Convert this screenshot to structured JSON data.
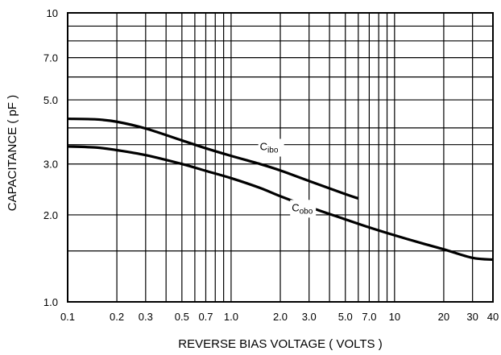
{
  "chart_data": {
    "type": "line",
    "title": "",
    "xlabel": "REVERSE BIAS VOLTAGE ( VOLTS )",
    "ylabel": "CAPACITANCE ( pF )",
    "xscale": "log",
    "yscale": "log",
    "xlim": [
      0.1,
      40
    ],
    "ylim": [
      1.0,
      10
    ],
    "grid": true,
    "legend": "none",
    "x_tick_labels": [
      {
        "value": 0.1,
        "label": "0.1"
      },
      {
        "value": 0.2,
        "label": "0.2"
      },
      {
        "value": 0.3,
        "label": "0.3"
      },
      {
        "value": 0.5,
        "label": "0.5"
      },
      {
        "value": 0.7,
        "label": "0.7"
      },
      {
        "value": 1.0,
        "label": "1.0"
      },
      {
        "value": 2.0,
        "label": "2.0"
      },
      {
        "value": 3.0,
        "label": "3.0"
      },
      {
        "value": 5.0,
        "label": "5.0"
      },
      {
        "value": 7.0,
        "label": "7.0"
      },
      {
        "value": 10,
        "label": "10"
      },
      {
        "value": 20,
        "label": "20"
      },
      {
        "value": 30,
        "label": "30"
      },
      {
        "value": 40,
        "label": "40"
      }
    ],
    "y_tick_labels": [
      {
        "value": 1.0,
        "label": "1.0"
      },
      {
        "value": 2.0,
        "label": "2.0"
      },
      {
        "value": 3.0,
        "label": "3.0"
      },
      {
        "value": 5.0,
        "label": "5.0"
      },
      {
        "value": 7.0,
        "label": "7.0"
      },
      {
        "value": 10,
        "label": "10"
      }
    ],
    "x_gridlines": [
      0.1,
      0.2,
      0.3,
      0.4,
      0.5,
      0.6,
      0.7,
      0.8,
      0.9,
      1,
      2,
      3,
      4,
      5,
      6,
      7,
      8,
      9,
      10,
      20,
      30,
      40
    ],
    "y_gridlines": [
      1,
      1.5,
      2,
      3,
      3.5,
      4,
      5,
      6,
      7,
      8,
      9,
      10
    ],
    "series": [
      {
        "name": "Cibo",
        "label_main": "C",
        "label_sub": "ibo",
        "label_at": {
          "x": 1.5,
          "y": 3.35
        },
        "x": [
          0.1,
          0.15,
          0.2,
          0.3,
          0.5,
          0.7,
          1.0,
          1.5,
          2.0,
          3.0,
          5.0,
          6.0
        ],
        "y": [
          4.3,
          4.28,
          4.2,
          3.98,
          3.62,
          3.4,
          3.2,
          3.0,
          2.85,
          2.62,
          2.36,
          2.28
        ]
      },
      {
        "name": "Cobo",
        "label_main": "C",
        "label_sub": "obo",
        "label_at": {
          "x": 2.35,
          "y": 2.06
        },
        "x": [
          0.1,
          0.15,
          0.2,
          0.3,
          0.5,
          0.7,
          1.0,
          1.5,
          2.0,
          3.0,
          5.0,
          7.0,
          10,
          15,
          20,
          30,
          40
        ],
        "y": [
          3.45,
          3.42,
          3.35,
          3.22,
          3.0,
          2.84,
          2.68,
          2.48,
          2.32,
          2.13,
          1.93,
          1.81,
          1.7,
          1.59,
          1.52,
          1.42,
          1.4
        ]
      }
    ]
  }
}
